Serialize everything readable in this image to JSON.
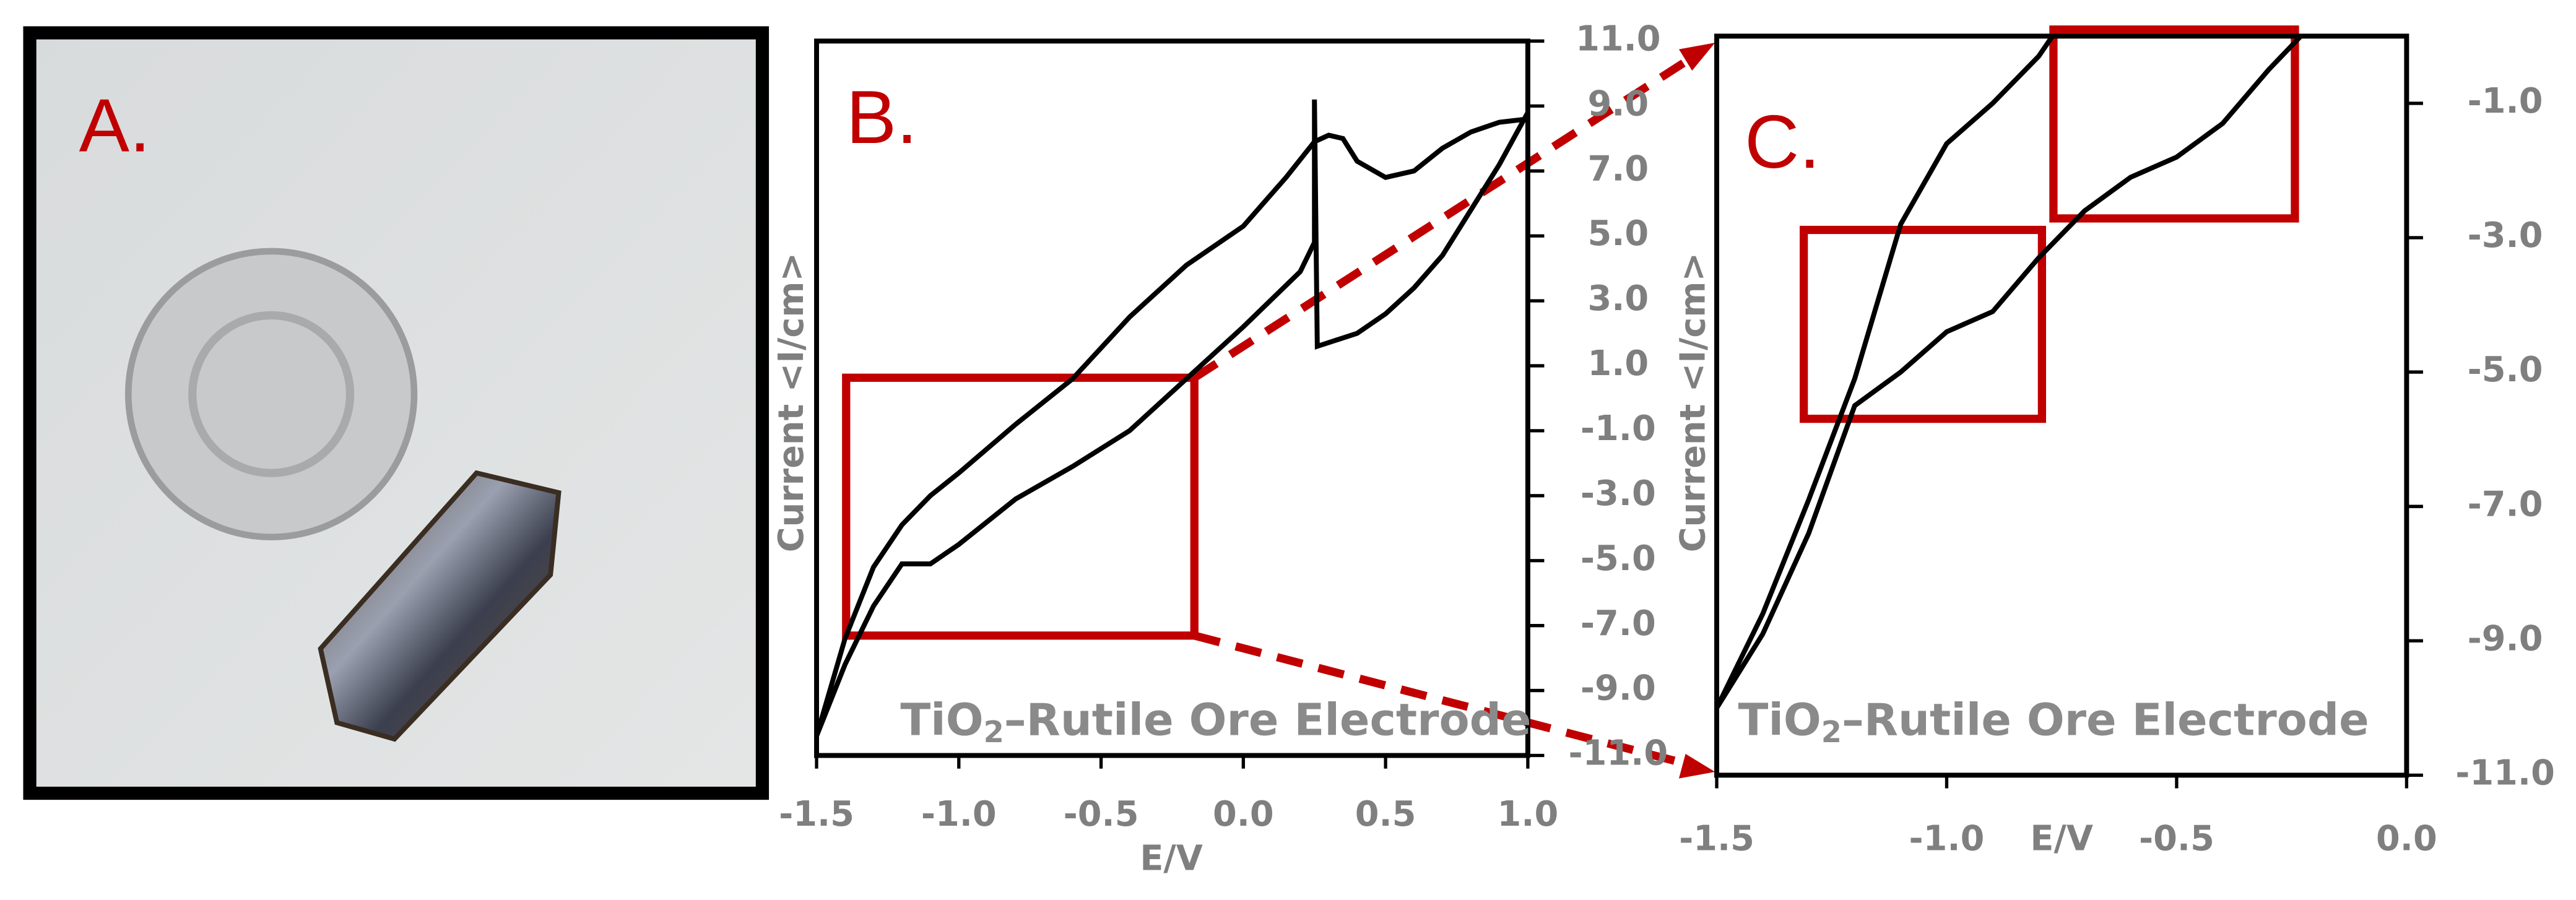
{
  "photo": {
    "label": "A."
  },
  "chart_data": [
    {
      "type": "line",
      "panel_label": "B.",
      "annotation": {
        "prefix": "TiO",
        "subscript": "2",
        "suffix": "–Rutile Ore Electrode"
      },
      "x_label": "E/V",
      "y_label": "Current <I/cm>",
      "y_axis_side": "right",
      "xlim": [
        -1.5,
        1.0
      ],
      "xticks": [
        -1.5,
        {
          "value": -1.0,
          "label": "-1.0"
        },
        -0.5,
        {
          "value": 0.0,
          "label": "0.0"
        },
        0.5,
        {
          "value": 1.0,
          "label": "1.0"
        }
      ],
      "ylim": [
        -11,
        11
      ],
      "yticks": [
        {
          "value": -11,
          "label": "-11.0"
        },
        {
          "value": -9,
          "label": "-9.0"
        },
        {
          "value": -7,
          "label": "-7.0"
        },
        {
          "value": -5,
          "label": "-5.0"
        },
        {
          "value": -3,
          "label": "-3.0"
        },
        {
          "value": -1,
          "label": "-1.0"
        },
        {
          "value": 1,
          "label": "1.0"
        },
        {
          "value": 3,
          "label": "3.0"
        },
        {
          "value": 5,
          "label": "5.0"
        },
        {
          "value": 7,
          "label": "7.0"
        },
        {
          "value": 9,
          "label": "9.0"
        },
        {
          "value": 11,
          "label": "11.0"
        }
      ],
      "series": [
        {
          "color": "#000000",
          "x": [
            -1.5,
            -1.4,
            -1.3,
            -1.2,
            -1.1,
            -1.0,
            -0.8,
            -0.6,
            -0.4,
            -0.2,
            0.0,
            0.15,
            0.25,
            0.3,
            0.35,
            0.4,
            0.5,
            0.6,
            0.7,
            0.8,
            0.9,
            1.0
          ],
          "values": [
            -10.4,
            -7.4,
            -5.2,
            -3.9,
            -3.0,
            -2.3,
            -0.8,
            0.6,
            2.5,
            4.1,
            5.3,
            6.8,
            7.9,
            8.1,
            8.0,
            7.3,
            6.8,
            7.0,
            7.7,
            8.2,
            8.5,
            8.6
          ]
        },
        {
          "color": "#000000",
          "x": [
            -1.5,
            -1.4,
            -1.3,
            -1.2,
            -1.1,
            -1.0,
            -0.8,
            -0.6,
            -0.4,
            -0.2,
            0.0,
            0.2,
            0.25,
            0.25,
            0.26,
            0.4,
            0.5,
            0.6,
            0.7,
            0.8,
            0.9,
            1.0
          ],
          "values": [
            -10.4,
            -8.2,
            -6.4,
            -5.1,
            -5.1,
            -4.5,
            -3.1,
            -2.1,
            -1.0,
            0.6,
            2.2,
            3.9,
            4.8,
            9.2,
            1.6,
            2.0,
            2.6,
            3.4,
            4.4,
            5.8,
            7.2,
            8.8
          ]
        }
      ]
    },
    {
      "type": "line",
      "panel_label": "C.",
      "annotation": {
        "prefix": "TiO",
        "subscript": "2",
        "suffix": "–Rutile Ore Electrode"
      },
      "x_label": "E/V",
      "y_label": "Current <I/cm>",
      "y_axis_side": "right",
      "xlim": [
        -1.5,
        0.0
      ],
      "xticks": [
        -1.5,
        {
          "value": -1.0,
          "label": "-1.0"
        },
        -0.5,
        {
          "value": 0.0,
          "label": "0.0"
        }
      ],
      "ylim": [
        -11,
        0
      ],
      "yticks": [
        {
          "value": -11,
          "label": "-11.0"
        },
        {
          "value": -9,
          "label": "-9.0"
        },
        {
          "value": -7,
          "label": "-7.0"
        },
        {
          "value": -5,
          "label": "-5.0"
        },
        {
          "value": -3,
          "label": "-3.0"
        },
        {
          "value": -1,
          "label": "-1.0"
        }
      ],
      "series": [
        {
          "color": "#000000",
          "x": [
            -1.5,
            -1.4,
            -1.3,
            -1.2,
            -1.1,
            -1.0,
            -0.9,
            -0.8,
            -0.77
          ],
          "values": [
            -10.0,
            -8.6,
            -6.9,
            -5.1,
            -2.8,
            -1.6,
            -1.0,
            -0.3,
            0
          ]
        },
        {
          "color": "#000000",
          "x": [
            -1.5,
            -1.4,
            -1.3,
            -1.2,
            -1.1,
            -1.0,
            -0.9,
            -0.8,
            -0.7,
            -0.6,
            -0.5,
            -0.4,
            -0.3,
            -0.23
          ],
          "values": [
            -10.0,
            -8.9,
            -7.4,
            -5.5,
            -5.0,
            -4.4,
            -4.1,
            -3.3,
            -2.6,
            -2.1,
            -1.8,
            -1.3,
            -0.5,
            0
          ]
        }
      ]
    }
  ]
}
